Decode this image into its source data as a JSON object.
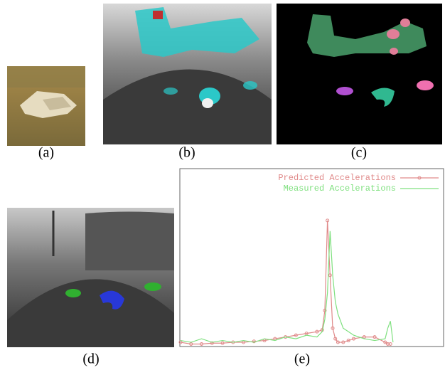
{
  "labels": [
    "(a)",
    "(b)",
    "(c)",
    "(d)",
    "(e)"
  ],
  "chart_data": {
    "type": "line",
    "x": [
      0,
      4,
      8,
      12,
      16,
      20,
      24,
      28,
      32,
      36,
      40,
      44,
      48,
      52,
      54,
      55,
      56,
      57,
      58,
      59,
      60,
      62,
      64,
      66,
      70,
      74,
      78,
      79,
      80,
      81,
      84,
      90,
      100
    ],
    "xlim": [
      0,
      100
    ],
    "ylim": [
      0,
      100
    ],
    "legend": "upper right",
    "series": [
      {
        "name": "Predicted Accelerations",
        "color": "#e08a8a",
        "marker": true,
        "values": [
          2,
          1,
          1,
          1.5,
          1.5,
          2,
          2,
          2.5,
          3,
          4,
          5,
          6,
          7,
          8,
          9,
          20,
          71,
          40,
          10,
          4,
          2,
          2,
          3,
          4,
          5,
          5,
          2,
          1,
          1,
          null,
          null,
          null,
          null
        ]
      },
      {
        "name": "Measured Accelerations",
        "color": "#7fe07f",
        "marker": false,
        "values": [
          3,
          2,
          4,
          2,
          3,
          2,
          3,
          2,
          4,
          3,
          5,
          4,
          6,
          5,
          8,
          15,
          30,
          65,
          40,
          25,
          18,
          10,
          8,
          6,
          4,
          3,
          4,
          10,
          14,
          2,
          null,
          null,
          null
        ]
      }
    ]
  }
}
